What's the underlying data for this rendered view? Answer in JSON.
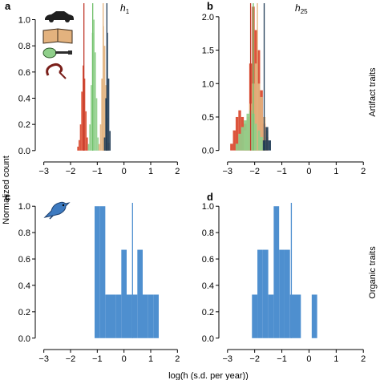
{
  "figure": {
    "ylabel": "Normalized count",
    "xlabel": "log(h (s.d. per year))",
    "row_labels": [
      "Artifact traits",
      "Organic traits"
    ]
  },
  "colors": {
    "car": "#1f3b55",
    "book": "#e3b27e",
    "guitar": "#8fcf8a",
    "horn": "#d9472b",
    "organic": "#4e8fcf",
    "line_guitar": "#6fbf6a",
    "line_horn": "#c0392b"
  },
  "icons": [
    "car-icon",
    "book-icon",
    "guitar-icon",
    "horn-icon",
    "bird-icon"
  ],
  "chart_data": [
    {
      "panel": "a",
      "title": "h",
      "title_sub": "1",
      "type": "bar",
      "xlim": [
        -3.2,
        2.2
      ],
      "ylim": [
        -0.05,
        1.15
      ],
      "xticks": [
        -3,
        -2,
        -1,
        0,
        1,
        2
      ],
      "yticks": [
        0.0,
        0.2,
        0.4,
        0.6,
        0.8,
        1.0
      ],
      "bin_width": 0.05,
      "series": [
        {
          "key": "horn",
          "bins": [
            [
              -1.75,
              0.03
            ],
            [
              -1.7,
              0.08
            ],
            [
              -1.65,
              0.2
            ],
            [
              -1.6,
              0.45
            ],
            [
              -1.55,
              0.65
            ],
            [
              -1.5,
              0.55
            ],
            [
              -1.45,
              0.3
            ],
            [
              -1.4,
              0.1
            ]
          ]
        },
        {
          "key": "guitar",
          "bins": [
            [
              -1.35,
              0.05
            ],
            [
              -1.3,
              0.2
            ],
            [
              -1.25,
              0.5
            ],
            [
              -1.2,
              0.9
            ],
            [
              -1.15,
              1.0
            ],
            [
              -1.1,
              0.75
            ],
            [
              -1.05,
              0.4
            ],
            [
              -1.0,
              0.1
            ]
          ]
        },
        {
          "key": "book",
          "bins": [
            [
              -0.95,
              0.05
            ],
            [
              -0.9,
              0.2
            ],
            [
              -0.85,
              0.55
            ],
            [
              -0.8,
              0.95
            ],
            [
              -0.75,
              0.8
            ],
            [
              -0.7,
              0.5
            ],
            [
              -0.65,
              0.25
            ],
            [
              -0.6,
              0.06
            ]
          ]
        },
        {
          "key": "car",
          "bins": [
            [
              -0.75,
              0.1
            ],
            [
              -0.7,
              0.4
            ],
            [
              -0.65,
              0.9
            ],
            [
              -0.6,
              0.55
            ],
            [
              -0.55,
              0.15
            ]
          ]
        }
      ],
      "vlines": [
        {
          "key": "line_horn",
          "x": -1.5
        },
        {
          "key": "line_guitar",
          "x": -1.17
        },
        {
          "key": "book",
          "x": -0.78
        },
        {
          "key": "car",
          "x": -0.64
        }
      ]
    },
    {
      "panel": "b",
      "title": "h",
      "title_sub": "25",
      "type": "bar",
      "xlim": [
        -3.2,
        2.2
      ],
      "ylim": [
        -0.1,
        2.25
      ],
      "xticks": [
        -3,
        -2,
        -1,
        0,
        1,
        2
      ],
      "yticks": [
        0.0,
        0.5,
        1.0,
        1.5,
        2.0
      ],
      "bin_width": 0.1,
      "series": [
        {
          "key": "horn",
          "bins": [
            [
              -2.9,
              0.1
            ],
            [
              -2.8,
              0.3
            ],
            [
              -2.7,
              0.5
            ],
            [
              -2.6,
              0.6
            ],
            [
              -2.5,
              0.5
            ],
            [
              -2.4,
              0.4
            ],
            [
              -2.3,
              0.5
            ],
            [
              -2.2,
              1.3
            ],
            [
              -2.1,
              2.15
            ],
            [
              -2.0,
              1.8
            ],
            [
              -1.9,
              1.5
            ],
            [
              -1.8,
              0.9
            ],
            [
              -1.7,
              0.4
            ],
            [
              -1.6,
              0.2
            ]
          ]
        },
        {
          "key": "book",
          "bins": [
            [
              -2.4,
              0.3
            ],
            [
              -2.3,
              0.5
            ],
            [
              -2.2,
              0.7
            ],
            [
              -2.1,
              1.0
            ],
            [
              -2.0,
              1.3
            ],
            [
              -1.9,
              1.0
            ],
            [
              -1.8,
              0.8
            ],
            [
              -1.7,
              0.5
            ],
            [
              -1.6,
              0.3
            ]
          ]
        },
        {
          "key": "guitar",
          "bins": [
            [
              -2.7,
              0.1
            ],
            [
              -2.6,
              0.25
            ],
            [
              -2.5,
              0.35
            ],
            [
              -2.4,
              0.45
            ],
            [
              -2.3,
              0.55
            ],
            [
              -2.2,
              0.6
            ],
            [
              -2.1,
              0.55
            ],
            [
              -2.0,
              0.4
            ],
            [
              -1.9,
              0.3
            ],
            [
              -1.8,
              0.2
            ],
            [
              -1.7,
              0.1
            ]
          ]
        },
        {
          "key": "car",
          "bins": [
            [
              -1.7,
              0.15
            ],
            [
              -1.6,
              0.35
            ],
            [
              -1.5,
              0.15
            ]
          ]
        }
      ],
      "vlines": [
        {
          "key": "line_horn",
          "x": -2.15
        },
        {
          "key": "line_guitar",
          "x": -2.05
        },
        {
          "key": "book",
          "x": -1.9
        },
        {
          "key": "car",
          "x": -1.65
        }
      ]
    },
    {
      "panel": "c",
      "type": "bar",
      "xlim": [
        -3.2,
        2.2
      ],
      "ylim": [
        -0.05,
        1.05
      ],
      "xticks": [
        -3,
        -2,
        -1,
        0,
        1,
        2
      ],
      "yticks": [
        0.0,
        0.2,
        0.4,
        0.6,
        0.8,
        1.0
      ],
      "bin_width": 0.2,
      "series": [
        {
          "key": "organic",
          "bins": [
            [
              -1.1,
              1.0
            ],
            [
              -0.9,
              1.0
            ],
            [
              -0.7,
              0.33
            ],
            [
              -0.5,
              0.33
            ],
            [
              -0.3,
              0.33
            ],
            [
              -0.1,
              0.67
            ],
            [
              0.1,
              0.33
            ],
            [
              0.3,
              0.33
            ],
            [
              0.5,
              0.67
            ],
            [
              0.7,
              0.33
            ],
            [
              0.9,
              0.33
            ],
            [
              1.1,
              0.33
            ]
          ]
        }
      ],
      "vlines": [
        {
          "key": "organic",
          "x": 0.32
        }
      ]
    },
    {
      "panel": "d",
      "type": "bar",
      "xlim": [
        -3.2,
        2.2
      ],
      "ylim": [
        -0.05,
        1.05
      ],
      "xticks": [
        -3,
        -2,
        -1,
        0,
        1,
        2
      ],
      "yticks": [
        0.0,
        0.2,
        0.4,
        0.6,
        0.8,
        1.0
      ],
      "bin_width": 0.2,
      "series": [
        {
          "key": "organic",
          "bins": [
            [
              -2.1,
              0.33
            ],
            [
              -1.9,
              0.67
            ],
            [
              -1.7,
              0.67
            ],
            [
              -1.5,
              0.33
            ],
            [
              -1.3,
              1.0
            ],
            [
              -1.1,
              0.67
            ],
            [
              -0.9,
              0.67
            ],
            [
              -0.7,
              0.33
            ],
            [
              -0.5,
              0.33
            ],
            [
              0.1,
              0.33
            ]
          ]
        }
      ],
      "vlines": [
        {
          "key": "organic",
          "x": -0.65
        }
      ]
    }
  ]
}
